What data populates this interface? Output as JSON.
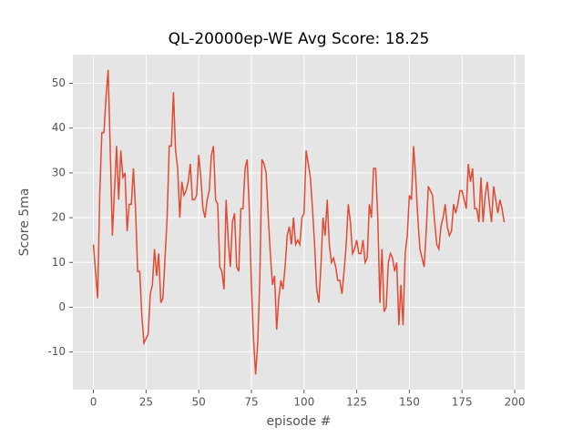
{
  "chart_data": {
    "type": "line",
    "title": "QL-20000ep-WE Avg Score: 18.25",
    "xlabel": "episode #",
    "ylabel": "Score 5ma",
    "series": [
      {
        "color": "#e24a33",
        "values": [
          14,
          8,
          2,
          25,
          39,
          39,
          47,
          53,
          35,
          16,
          26,
          36,
          24,
          35,
          29,
          30,
          17,
          23,
          23,
          31,
          22,
          8,
          8,
          -2,
          -8,
          -7,
          -6,
          3,
          5,
          13,
          7,
          12,
          1,
          2,
          11,
          20,
          36,
          36,
          48,
          35,
          31,
          20,
          28,
          25,
          26,
          28,
          32,
          24,
          24,
          25,
          34,
          29,
          22,
          20,
          24,
          26,
          34,
          36,
          24,
          23,
          9,
          8,
          4,
          24,
          15,
          9,
          19,
          21,
          9,
          8,
          22,
          22,
          31,
          33,
          22,
          5,
          -7,
          -15,
          -8,
          6,
          33,
          32,
          30,
          20,
          12,
          5,
          7,
          -5,
          2,
          6,
          4,
          9,
          16,
          18,
          14,
          20,
          14,
          15,
          14,
          20,
          21,
          35,
          32,
          29,
          22,
          14,
          4,
          1,
          9,
          20,
          16,
          24,
          14,
          10,
          11,
          9,
          6,
          6,
          3,
          8,
          14,
          23,
          19,
          12,
          13,
          15,
          12,
          12,
          15,
          10,
          11,
          23,
          20,
          31,
          31,
          20,
          1,
          13,
          -1,
          0,
          10,
          12,
          11,
          8,
          10,
          -4,
          5,
          -4,
          12,
          16,
          25,
          24,
          36,
          29,
          20,
          13,
          11,
          9,
          17,
          27,
          26,
          25,
          19,
          14,
          13,
          18,
          20,
          23,
          18,
          16,
          17,
          23,
          21,
          23,
          26,
          26,
          24,
          22,
          32,
          28,
          31,
          22,
          22,
          19,
          29,
          19,
          25,
          28,
          23,
          19,
          27,
          24,
          21,
          24,
          22,
          19
        ]
      }
    ],
    "xlim": [
      -9.75,
      204.75
    ],
    "xticks": [
      0,
      25,
      50,
      75,
      100,
      125,
      150,
      175,
      200
    ],
    "ylim": [
      -18.4,
      56.4
    ],
    "yticks": [
      -10,
      0,
      10,
      20,
      30,
      40,
      50
    ],
    "grid": true
  }
}
